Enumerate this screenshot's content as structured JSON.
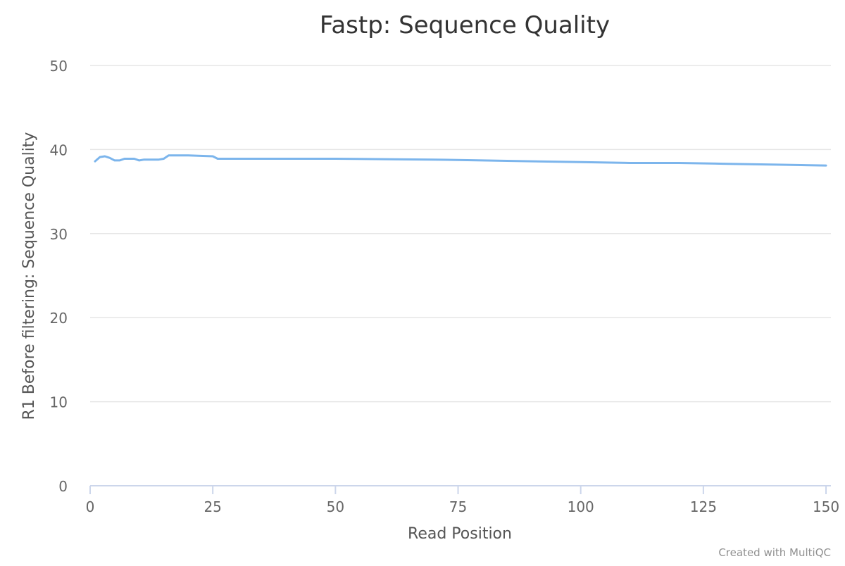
{
  "chart_data": {
    "type": "line",
    "title": "Fastp: Sequence Quality",
    "xlabel": "Read Position",
    "ylabel": "R1 Before filtering: Sequence Quality",
    "xlim": [
      0,
      151
    ],
    "ylim": [
      0,
      50
    ],
    "x_ticks": [
      0,
      25,
      50,
      75,
      100,
      125,
      150
    ],
    "y_ticks": [
      0,
      10,
      20,
      30,
      40,
      50
    ],
    "grid": true,
    "legend": "none",
    "series": [
      {
        "color": "#7cb5ec",
        "x": [
          1,
          2,
          3,
          4,
          5,
          6,
          7,
          8,
          9,
          10,
          11,
          12,
          13,
          14,
          15,
          16,
          20,
          25,
          26,
          30,
          40,
          50,
          60,
          70,
          80,
          90,
          100,
          110,
          120,
          130,
          140,
          150
        ],
        "y": [
          38.6,
          39.1,
          39.2,
          39.0,
          38.7,
          38.7,
          38.9,
          38.9,
          38.9,
          38.7,
          38.8,
          38.8,
          38.8,
          38.8,
          38.9,
          39.3,
          39.3,
          39.2,
          38.9,
          38.9,
          38.9,
          38.9,
          38.85,
          38.8,
          38.7,
          38.6,
          38.5,
          38.4,
          38.4,
          38.3,
          38.2,
          38.1
        ]
      }
    ]
  },
  "credit": "Created with MultiQC"
}
